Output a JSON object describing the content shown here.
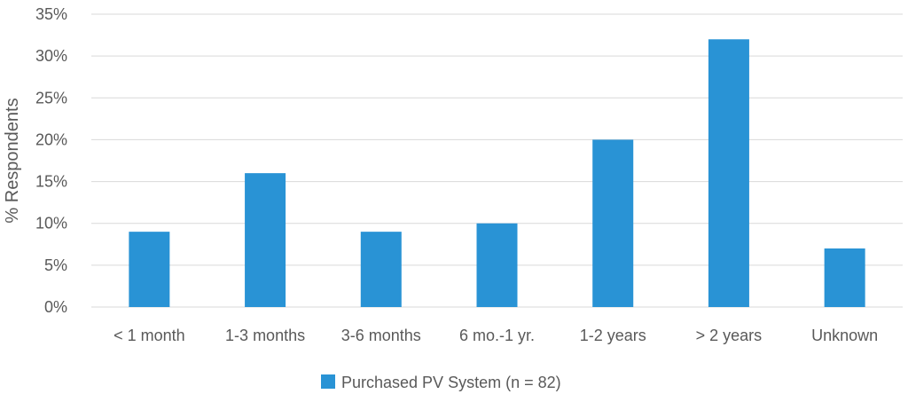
{
  "chart_data": {
    "type": "bar",
    "title": "",
    "xlabel": "",
    "ylabel": "% Respondents",
    "ylim": [
      0,
      35
    ],
    "yticks": [
      0,
      5,
      10,
      15,
      20,
      25,
      30,
      35
    ],
    "ytick_suffix": "%",
    "grid": true,
    "legend_position": "bottom",
    "categories": [
      "< 1 month",
      "1-3 months",
      "3-6 months",
      "6 mo.-1 yr.",
      "1-2 years",
      "> 2 years",
      "Unknown"
    ],
    "series": [
      {
        "name": "Purchased PV System (n = 82)",
        "color": "#2993d5",
        "values": [
          9,
          16,
          9,
          10,
          20,
          32,
          7
        ]
      }
    ]
  },
  "colors": {
    "bar": "#2993d5",
    "gridline": "#d9d9d9",
    "text": "#595959"
  }
}
